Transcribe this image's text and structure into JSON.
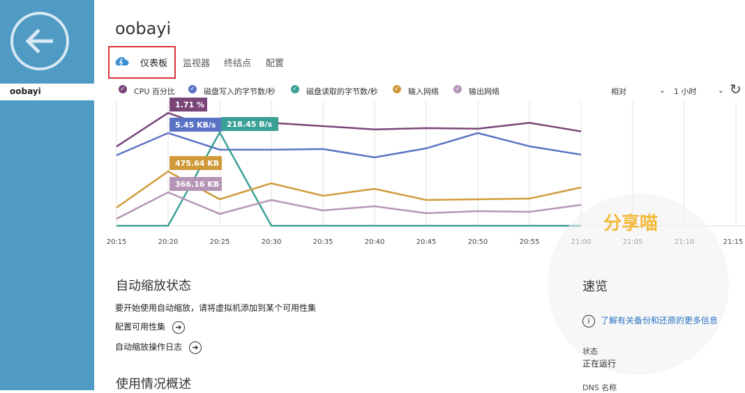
{
  "sidebar": {
    "items": [
      "oobayi"
    ]
  },
  "header": {
    "title": "oobayi",
    "tabs": [
      "仪表板",
      "监视器",
      "终结点",
      "配置"
    ]
  },
  "controls": {
    "mode": "相对",
    "range": "1 小时"
  },
  "chart_data": {
    "type": "line",
    "categories": [
      "20:15",
      "20:20",
      "20:25",
      "20:30",
      "20:35",
      "20:40",
      "20:45",
      "20:50",
      "20:55",
      "21:00",
      "21:05",
      "21:10",
      "21:15"
    ],
    "grid": true,
    "series": [
      {
        "name": "CPU 百分比",
        "color": "#7a4578",
        "ylim": [
          0,
          1.89
        ],
        "values": [
          1.2,
          1.71,
          1.44,
          1.56,
          1.51,
          1.46,
          1.48,
          1.47,
          1.56,
          1.43,
          null,
          null,
          null
        ],
        "value_labels": [
          null,
          "1.71 %",
          null,
          null,
          null,
          null,
          null,
          null,
          null,
          null,
          null,
          null,
          null
        ]
      },
      {
        "name": "磁盘写入的字节数/秒",
        "color": "#5a72c4",
        "ylim": [
          0,
          7.33
        ],
        "values": [
          4.14,
          5.45,
          4.47,
          4.47,
          4.51,
          4.02,
          4.55,
          5.45,
          4.67,
          4.18,
          null,
          null,
          null
        ],
        "value_labels": [
          null,
          "5.45 KB/s",
          null,
          null,
          null,
          null,
          null,
          null,
          null,
          null,
          null,
          null,
          null
        ]
      },
      {
        "name": "磁盘读取的字节数/秒",
        "color": "#3aa096",
        "ylim": [
          0,
          291.8
        ],
        "values": [
          0,
          0,
          218.45,
          0,
          0,
          0,
          0,
          0,
          0,
          0,
          null,
          null,
          null
        ],
        "value_labels": [
          null,
          null,
          "218.45 B/s",
          null,
          null,
          null,
          null,
          null,
          null,
          null,
          null,
          null,
          null
        ]
      },
      {
        "name": "输入网络",
        "color": "#d09a3a",
        "ylim": [
          0,
          1091.5
        ],
        "values": [
          158.5,
          475.64,
          231.7,
          372,
          262.2,
          323.2,
          225.6,
          231.7,
          237.8,
          335.4,
          null,
          null,
          null
        ],
        "value_labels": [
          null,
          "475.64 KB",
          null,
          null,
          null,
          null,
          null,
          null,
          null,
          null,
          null,
          null,
          null
        ]
      },
      {
        "name": "输出网络",
        "color": "#b595b5",
        "ylim": [
          0,
          1365.5
        ],
        "values": [
          76.3,
          366.16,
          129.7,
          282.3,
          167.8,
          213.6,
          137.3,
          160.2,
          152.6,
          228.8,
          null,
          null,
          null
        ],
        "value_labels": [
          null,
          "366.16 KB",
          null,
          null,
          null,
          null,
          null,
          null,
          null,
          null,
          null,
          null,
          null
        ]
      }
    ]
  },
  "autoscale": {
    "title": "自动缩放状态",
    "text": "要开始使用自动缩放，请将虚拟机添加到某个可用性集",
    "links": [
      "配置可用性集",
      "自动缩放操作日志"
    ]
  },
  "usage": {
    "title": "使用情况概述"
  },
  "quick": {
    "title": "速览",
    "link": "了解有关备份和还原的更多信息",
    "status_label": "状态",
    "status": "正在运行",
    "dns_label": "DNS 名称"
  },
  "watermark": "分享喵"
}
